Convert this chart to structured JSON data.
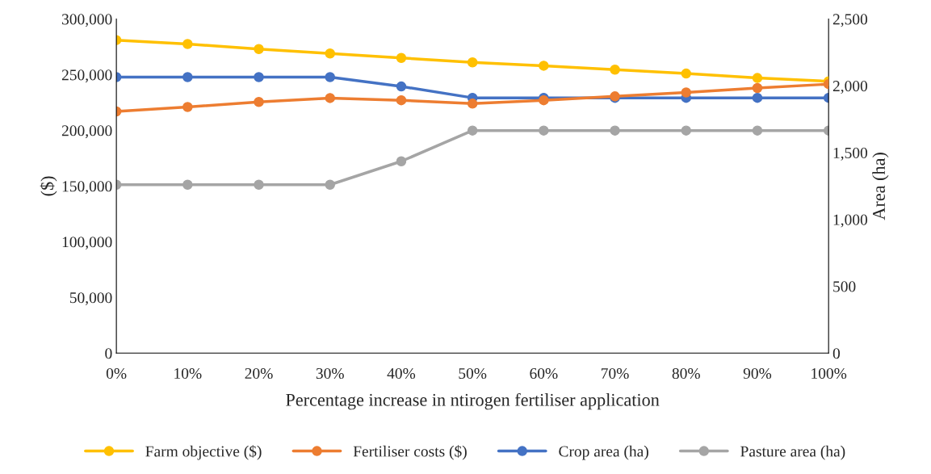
{
  "chart_data": {
    "type": "line",
    "xlabel": "Percentage increase in ntirogen fertiliser application",
    "ylabel": "($)",
    "y2label": "Area (ha)",
    "categories": [
      "0%",
      "10%",
      "20%",
      "30%",
      "40%",
      "50%",
      "60%",
      "70%",
      "80%",
      "90%",
      "100%"
    ],
    "series": [
      {
        "name": "Farm objective ($)",
        "color": "#ffc000",
        "values": [
          281000,
          277500,
          273000,
          269000,
          265000,
          261000,
          258000,
          254500,
          251000,
          247000,
          244000
        ]
      },
      {
        "name": "Fertiliser costs ($)",
        "color": "#ed7d31",
        "values": [
          217000,
          221000,
          225500,
          229000,
          227000,
          224000,
          227000,
          230500,
          234000,
          238000,
          241500
        ]
      },
      {
        "name": "Crop area (ha)",
        "color": "#4472c4",
        "axis": "y2",
        "values": [
          2065,
          2065,
          2065,
          2065,
          1995,
          1910,
          1910,
          1910,
          1910,
          1910,
          1910
        ]
      },
      {
        "name": "Pasture area (ha)",
        "color": "#a5a5a5",
        "axis": "y2",
        "values": [
          1260,
          1260,
          1260,
          1260,
          1435,
          1665,
          1665,
          1665,
          1665,
          1665,
          1665
        ]
      }
    ],
    "ylim": [
      0,
      300000
    ],
    "yticks": [
      {
        "value": 0,
        "label": "0"
      },
      {
        "value": 50000,
        "label": "50,000"
      },
      {
        "value": 100000,
        "label": "100,000"
      },
      {
        "value": 150000,
        "label": "150,000"
      },
      {
        "value": 200000,
        "label": "200,000"
      },
      {
        "value": 250000,
        "label": "250,000"
      },
      {
        "value": 300000,
        "label": "300,000"
      }
    ],
    "y2lim": [
      0,
      2500
    ],
    "y2ticks": [
      {
        "value": 0,
        "label": "0"
      },
      {
        "value": 500,
        "label": "500"
      },
      {
        "value": 1000,
        "label": "1,000"
      },
      {
        "value": 1500,
        "label": "1,500"
      },
      {
        "value": 2000,
        "label": "2,000"
      },
      {
        "value": 2500,
        "label": "2,500"
      }
    ],
    "marker": "circle",
    "line_style": "solid",
    "grid": false,
    "legend": "bottom"
  }
}
